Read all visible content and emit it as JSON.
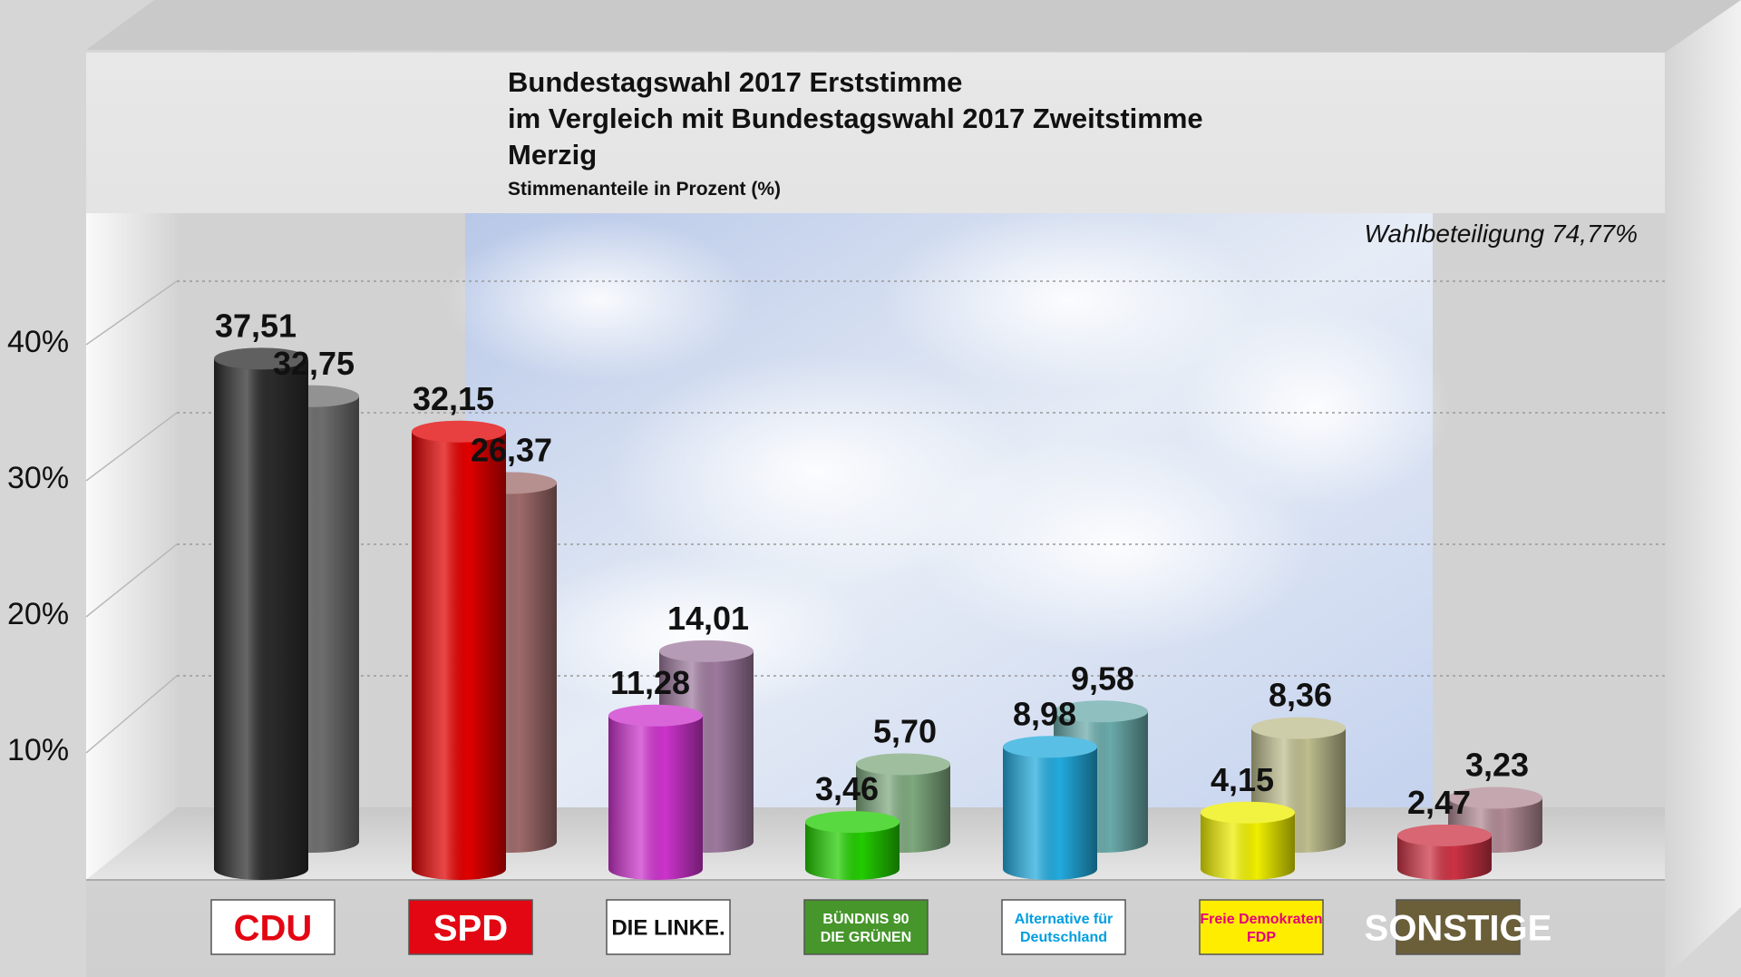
{
  "chart_data": {
    "type": "bar",
    "title": "Bundestagswahl 2017 Erststimme",
    "title_line2": "im Vergleich mit Bundestagswahl 2017 Zweitstimme",
    "title_line3": "Merzig",
    "subtitle": "Stimmenanteile in Prozent (%)",
    "annotation": "Wahlbeteiligung 74,77%",
    "categories": [
      "CDU",
      "SPD",
      "DIE LINKE.",
      "BÜNDNIS 90 DIE GRÜNEN",
      "Alternative für Deutschland",
      "Freie Demokraten FDP",
      "SONSTIGE"
    ],
    "series": [
      {
        "values": [
          37.51,
          32.15,
          11.28,
          3.46,
          8.98,
          4.15,
          2.47
        ],
        "labels": [
          "37,51",
          "32,15",
          "11,28",
          "3,46",
          "8,98",
          "4,15",
          "2,47"
        ],
        "colors": [
          "#2b2b2b",
          "#e00000",
          "#cc33cc",
          "#22cc00",
          "#22aadd",
          "#eeee00",
          "#cc3344"
        ]
      },
      {
        "values": [
          32.75,
          26.37,
          14.01,
          5.7,
          9.58,
          8.36,
          3.23
        ],
        "labels": [
          "32,75",
          "26,37",
          "14,01",
          "5,70",
          "9,58",
          "8,36",
          "3,23"
        ],
        "colors": [
          "#6e6e6e",
          "#9e6a6a",
          "#9e7a9e",
          "#7ea87e",
          "#6aaaaa",
          "#bdbd8e",
          "#b08a94"
        ]
      }
    ],
    "y_ticks": [
      "10%",
      "20%",
      "30%",
      "40%"
    ],
    "y_tick_values": [
      10,
      20,
      30,
      40
    ],
    "ylim": [
      0,
      45
    ],
    "grid": true
  },
  "logos": [
    {
      "text": "CDU",
      "bg": "#ffffff",
      "fg": "#e30613"
    },
    {
      "text": "SPD",
      "bg": "#e30613",
      "fg": "#ffffff"
    },
    {
      "text": "DIE LINKE.",
      "bg": "#ffffff",
      "fg": "#111111"
    },
    {
      "text": "BÜNDNIS 90 DIE GRÜNEN",
      "bg": "#46962b",
      "fg": "#ffffff"
    },
    {
      "text": "Alternative für Deutschland",
      "bg": "#ffffff",
      "fg": "#009ee0"
    },
    {
      "text": "Freie Demokraten FDP",
      "bg": "#ffed00",
      "fg": "#e5007d"
    },
    {
      "text": "SONSTIGE",
      "bg": "#6b5f3a",
      "fg": "#ffffff"
    }
  ]
}
